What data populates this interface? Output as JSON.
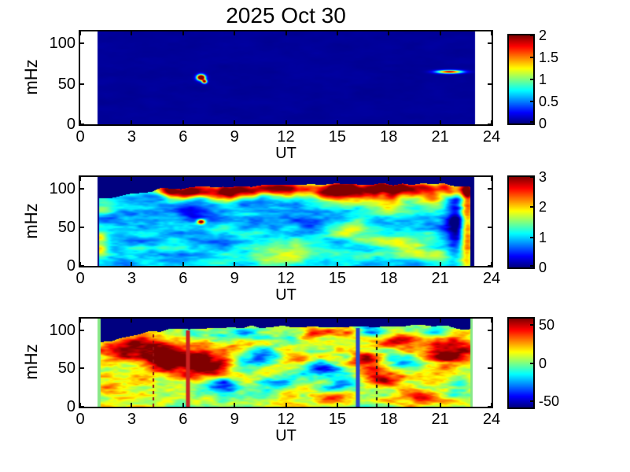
{
  "title": "2025 Oct 30",
  "colors": {
    "background": "#ffffff",
    "axis": "#000000",
    "no_data_fill": "#00008f",
    "edge_strip_green": "#87e887",
    "marker_red": "#cc2222",
    "marker_blue": "#2947cc",
    "marker_dark_red_dotted": "#991111",
    "marker_black_dotted": "#1a1a1a"
  },
  "chart_data": [
    {
      "type": "heatmap",
      "xlabel": "UT",
      "ylabel": "mHz",
      "xlim": [
        0,
        24
      ],
      "ylim": [
        0,
        115
      ],
      "x_ticks": [
        0,
        3,
        6,
        9,
        12,
        15,
        18,
        21,
        24
      ],
      "y_ticks": [
        0,
        50,
        100
      ],
      "time_coverage_ut": [
        1.0,
        23.05
      ],
      "body_range_ut": [
        1.0,
        23.05
      ],
      "value_range": [
        0,
        2
      ],
      "colorbar_ticks": [
        {
          "v": 2,
          "label": "2"
        },
        {
          "v": 1.5,
          "label": "1.5"
        },
        {
          "v": 1,
          "label": "1"
        },
        {
          "v": 0.5,
          "label": "0.5"
        },
        {
          "v": 0,
          "label": "0"
        }
      ],
      "base_value": 0.05,
      "noise_amp": 0.02,
      "noise_scale_x": 30,
      "noise_scale_y": 9,
      "seed": 11,
      "features": [
        {
          "t": 7.05,
          "f": 58,
          "st": 0.16,
          "sf": 2.4,
          "a": 3.0
        },
        {
          "t": 7.25,
          "f": 53,
          "st": 0.1,
          "sf": 1.6,
          "a": 2.0
        },
        {
          "t": 21.55,
          "f": 65,
          "st": 0.5,
          "sf": 1.4,
          "a": 1.9
        }
      ]
    },
    {
      "type": "heatmap",
      "xlabel": "UT",
      "ylabel": "mHz",
      "xlim": [
        0,
        24
      ],
      "ylim": [
        0,
        115
      ],
      "x_ticks": [
        0,
        3,
        6,
        9,
        12,
        15,
        18,
        21,
        24
      ],
      "y_ticks": [
        0,
        50,
        100
      ],
      "time_coverage_ut": [
        1.0,
        23.0
      ],
      "body_range_ut": [
        1.1,
        22.75
      ],
      "value_range": [
        0,
        3
      ],
      "colorbar_ticks": [
        {
          "v": 3,
          "label": "3"
        },
        {
          "v": 2,
          "label": "2"
        },
        {
          "v": 1,
          "label": "1"
        },
        {
          "v": 0,
          "label": "0"
        }
      ],
      "base_value": 1.0,
      "noise_amp": 0.5,
      "noise_scale_x": 30,
      "noise_scale_y": 9,
      "seed": 23,
      "boundary": [
        [
          1,
          87
        ],
        [
          2,
          89
        ],
        [
          3,
          93
        ],
        [
          4,
          96
        ],
        [
          5,
          100
        ],
        [
          6,
          100
        ],
        [
          7,
          102
        ],
        [
          8,
          101
        ],
        [
          9,
          104
        ],
        [
          10,
          103
        ],
        [
          11,
          105
        ],
        [
          12,
          104
        ],
        [
          13,
          106
        ],
        [
          14,
          104
        ],
        [
          15,
          106
        ],
        [
          16,
          105
        ],
        [
          17,
          107
        ],
        [
          18,
          106
        ],
        [
          19,
          105
        ],
        [
          20,
          107
        ],
        [
          21,
          106
        ],
        [
          22,
          104
        ],
        [
          23,
          103
        ]
      ],
      "boundary_wiggle": 2,
      "boundary_band": {
        "t_start": 4.4,
        "t_end": 22.5,
        "offset": 6,
        "sf": 6.5,
        "a": 2.1
      },
      "features": [
        {
          "t": 7.05,
          "f": 57,
          "st": 0.15,
          "sf": 2.0,
          "a": 2.5
        },
        {
          "t": 6.3,
          "f": 72,
          "st": 1.0,
          "sf": 9,
          "a": -0.75
        },
        {
          "t": 2.5,
          "f": 60,
          "st": 1.2,
          "sf": 10,
          "a": -0.35
        },
        {
          "t": 10.4,
          "f": 90,
          "st": 0.8,
          "sf": 7,
          "a": -0.6
        },
        {
          "t": 13.2,
          "f": 55,
          "st": 0.8,
          "sf": 8,
          "a": -0.45
        },
        {
          "t": 17.5,
          "f": 55,
          "st": 0.7,
          "sf": 7,
          "a": -0.5
        },
        {
          "t": 21.95,
          "f": 60,
          "st": 0.45,
          "sf": 38,
          "a": -1.1
        },
        {
          "t": 22.55,
          "f": 55,
          "st": 0.28,
          "sf": 45,
          "a": 1.6
        },
        {
          "t": 1.15,
          "f": 22,
          "st": 0.35,
          "sf": 6,
          "a": 1.1
        },
        {
          "t": 1.15,
          "f": 38,
          "st": 0.3,
          "sf": 5,
          "a": 0.9
        },
        {
          "t": 1.3,
          "f": 75,
          "st": 0.5,
          "sf": 6,
          "a": 0.6
        },
        {
          "t": 5.0,
          "f": 100,
          "st": 0.7,
          "sf": 5,
          "a": 1.3
        },
        {
          "t": 13,
          "f": 20,
          "st": 1.5,
          "sf": 8,
          "a": 0.55
        },
        {
          "t": 16,
          "f": 45,
          "st": 1.2,
          "sf": 9,
          "a": 0.6
        },
        {
          "t": 18.5,
          "f": 28,
          "st": 1.2,
          "sf": 8,
          "a": 0.6
        },
        {
          "t": 20.8,
          "f": 15,
          "st": 1.0,
          "sf": 7,
          "a": 0.7
        },
        {
          "t": 11,
          "f": 10,
          "st": 1.2,
          "sf": 6,
          "a": 0.5
        },
        {
          "t": 16.2,
          "f": 88,
          "st": 0.9,
          "sf": 8,
          "a": 1.0
        },
        {
          "t": 18.0,
          "f": 80,
          "st": 0.8,
          "sf": 9,
          "a": 0.9
        },
        {
          "t": 14.5,
          "f": 92,
          "st": 0.6,
          "sf": 6,
          "a": 0.8
        },
        {
          "t": 20.5,
          "f": 85,
          "st": 0.8,
          "sf": 8,
          "a": 0.9
        }
      ]
    },
    {
      "type": "heatmap",
      "xlabel": "UT",
      "ylabel": "mHz",
      "xlim": [
        0,
        24
      ],
      "ylim": [
        0,
        115
      ],
      "x_ticks": [
        0,
        3,
        6,
        9,
        12,
        15,
        18,
        21,
        24
      ],
      "y_ticks": [
        0,
        50,
        100
      ],
      "time_coverage_ut": [
        1.0,
        22.92
      ],
      "body_range_ut": [
        1.18,
        22.74
      ],
      "value_range": [
        -58,
        58
      ],
      "colorbar_ticks": [
        {
          "v": 50,
          "label": "50"
        },
        {
          "v": 0,
          "label": "0"
        },
        {
          "v": -50,
          "label": "-50"
        }
      ],
      "base_value": 8,
      "noise_amp": 26,
      "noise_scale_x": 26,
      "noise_scale_y": 8,
      "seed": 37,
      "boundary": [
        [
          1,
          85
        ],
        [
          2,
          87
        ],
        [
          3,
          91
        ],
        [
          4,
          97
        ],
        [
          5,
          100
        ],
        [
          6,
          101
        ],
        [
          7,
          103
        ],
        [
          8,
          102
        ],
        [
          9,
          103
        ],
        [
          10,
          104
        ],
        [
          12,
          105
        ],
        [
          14,
          104
        ],
        [
          16,
          105
        ],
        [
          18,
          104
        ],
        [
          20,
          105
        ],
        [
          21.5,
          106
        ],
        [
          22,
          103
        ],
        [
          22.9,
          100
        ]
      ],
      "boundary_wiggle": 2,
      "edge_strips": [
        {
          "t0": 1.0,
          "t1": 1.18,
          "color": "#87e887"
        },
        {
          "t0": 22.74,
          "t1": 22.92,
          "color": "#87e887"
        }
      ],
      "features": [
        {
          "t": 5.8,
          "f": 60,
          "st": 1.4,
          "sf": 12,
          "a": 52
        },
        {
          "t": 4.5,
          "f": 68,
          "st": 0.9,
          "sf": 9,
          "a": 35
        },
        {
          "t": 7.4,
          "f": 50,
          "st": 0.9,
          "sf": 9,
          "a": 40
        },
        {
          "t": 2.2,
          "f": 75,
          "st": 1.0,
          "sf": 9,
          "a": 38
        },
        {
          "t": 1.5,
          "f": 25,
          "st": 0.45,
          "sf": 7,
          "a": 30
        },
        {
          "t": 3.5,
          "f": 83,
          "st": 0.8,
          "sf": 7,
          "a": 30
        },
        {
          "t": 8.4,
          "f": 28,
          "st": 0.8,
          "sf": 7,
          "a": -38
        },
        {
          "t": 10.6,
          "f": 67,
          "st": 0.9,
          "sf": 9,
          "a": -42
        },
        {
          "t": 11.5,
          "f": 28,
          "st": 0.7,
          "sf": 6,
          "a": -28
        },
        {
          "t": 13.8,
          "f": 50,
          "st": 0.8,
          "sf": 8,
          "a": -45
        },
        {
          "t": 15.3,
          "f": 32,
          "st": 0.8,
          "sf": 8,
          "a": -40
        },
        {
          "t": 17.0,
          "f": 97,
          "st": 0.7,
          "sf": 6,
          "a": -45
        },
        {
          "t": 12.4,
          "f": 93,
          "st": 0.6,
          "sf": 6,
          "a": -30
        },
        {
          "t": 9.8,
          "f": 95,
          "st": 0.6,
          "sf": 5,
          "a": -25
        },
        {
          "t": 20.9,
          "f": 97,
          "st": 0.6,
          "sf": 5,
          "a": -28
        },
        {
          "t": 6.9,
          "f": 95,
          "st": 0.8,
          "sf": 6,
          "a": -30
        },
        {
          "t": 17.7,
          "f": 38,
          "st": 0.9,
          "sf": 8,
          "a": 48
        },
        {
          "t": 18.3,
          "f": 88,
          "st": 0.9,
          "sf": 8,
          "a": 42
        },
        {
          "t": 21.5,
          "f": 70,
          "st": 1.1,
          "sf": 13,
          "a": 52
        },
        {
          "t": 16.7,
          "f": 62,
          "st": 0.7,
          "sf": 8,
          "a": 38
        },
        {
          "t": 13.5,
          "f": 95,
          "st": 0.7,
          "sf": 5,
          "a": 38
        },
        {
          "t": 15.8,
          "f": 97,
          "st": 0.7,
          "sf": 5,
          "a": 32
        },
        {
          "t": 19.8,
          "f": 12,
          "st": 0.9,
          "sf": 6,
          "a": 28
        },
        {
          "t": 14.6,
          "f": 12,
          "st": 0.9,
          "sf": 6,
          "a": 25
        },
        {
          "t": 12.2,
          "f": 62,
          "st": 0.8,
          "sf": 8,
          "a": 30
        },
        {
          "t": 9.3,
          "f": 75,
          "st": 0.9,
          "sf": 8,
          "a": 30
        },
        {
          "t": 10.2,
          "f": 12,
          "st": 0.8,
          "sf": 6,
          "a": -20
        },
        {
          "t": 19.0,
          "f": 60,
          "st": 0.7,
          "sf": 7,
          "a": -30
        },
        {
          "t": 22.3,
          "f": 30,
          "st": 0.5,
          "sf": 10,
          "a": -25
        }
      ],
      "markers": [
        {
          "t": 4.25,
          "style": "dotted",
          "color": "#991111",
          "width": 2,
          "f_top": 100
        },
        {
          "t": 6.27,
          "style": "solid",
          "color": "#cc2222",
          "width": 5,
          "f_top": 100
        },
        {
          "t": 16.2,
          "style": "solid",
          "color": "#2947cc",
          "width": 5,
          "f_top": 103
        },
        {
          "t": 17.3,
          "style": "dotted",
          "color": "#1a1a1a",
          "width": 2,
          "f_top": 100
        }
      ]
    }
  ]
}
